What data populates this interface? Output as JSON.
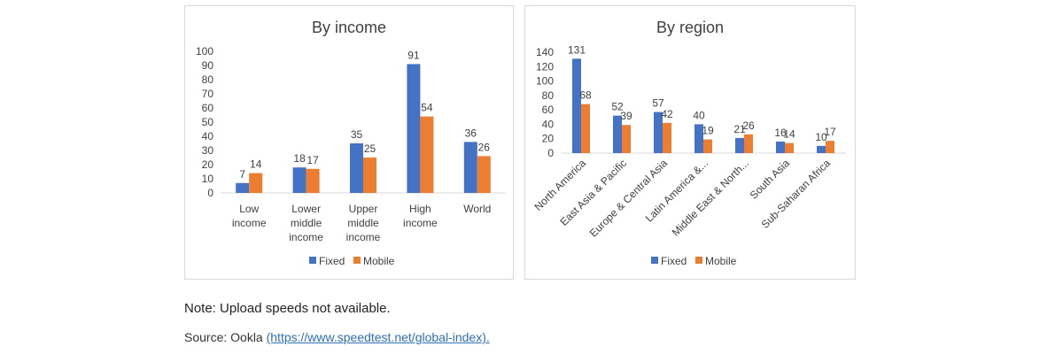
{
  "chart_data": [
    {
      "type": "bar",
      "title": "By income",
      "categories": [
        [
          "Low",
          "income"
        ],
        [
          "Lower",
          "middle",
          "income"
        ],
        [
          "Upper",
          "middle",
          "income"
        ],
        [
          "High",
          "income"
        ],
        [
          "World"
        ]
      ],
      "series": [
        {
          "name": "Fixed",
          "values": [
            7,
            18,
            35,
            91,
            36
          ]
        },
        {
          "name": "Mobile",
          "values": [
            14,
            17,
            25,
            54,
            26
          ]
        }
      ],
      "ylim": [
        0,
        100
      ],
      "yticks": [
        0,
        10,
        20,
        30,
        40,
        50,
        60,
        70,
        80,
        90,
        100
      ],
      "xlabel": "",
      "ylabel": "",
      "grid": false,
      "legend": "bottom",
      "colors": {
        "Fixed": "#4472c4",
        "Mobile": "#ed7d31"
      }
    },
    {
      "type": "bar",
      "title": "By region",
      "categories": [
        "North America",
        "East Asia & Pacific",
        "Europe & Central Asia",
        "Latin America &...",
        "Middle East & North...",
        "South Asia",
        "Sub-Saharan Africa"
      ],
      "series": [
        {
          "name": "Fixed",
          "values": [
            131,
            52,
            57,
            40,
            21,
            16,
            10
          ]
        },
        {
          "name": "Mobile",
          "values": [
            68,
            39,
            42,
            19,
            26,
            14,
            17
          ]
        }
      ],
      "ylim": [
        0,
        140
      ],
      "yticks": [
        0,
        20,
        40,
        60,
        80,
        100,
        120,
        140
      ],
      "xlabel": "",
      "ylabel": "",
      "grid": false,
      "legend": "bottom",
      "colors": {
        "Fixed": "#4472c4",
        "Mobile": "#ed7d31"
      }
    }
  ],
  "footer": {
    "note": "Note: Upload speeds not available.",
    "source_prefix": "Source: Ookla ",
    "source_link": "(https://www.speedtest.net/global-index)."
  }
}
